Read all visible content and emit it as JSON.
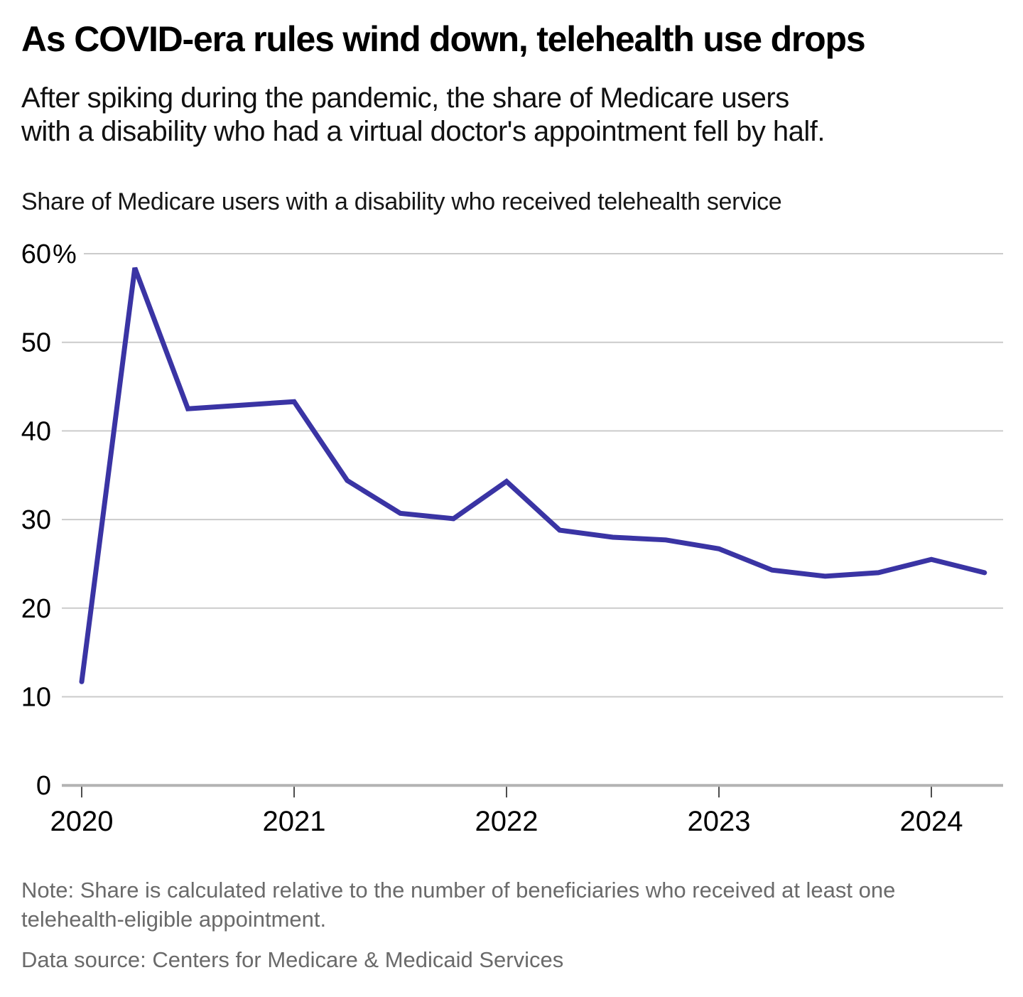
{
  "header": {
    "title": "As COVID-era rules wind down, telehealth use drops",
    "subtitle": "After spiking during the pandemic, the share of Medicare users\nwith a disability who had a virtual doctor's appointment fell by half."
  },
  "chart_data": {
    "type": "line",
    "title": "Share of Medicare users with a disability who received telehealth service",
    "x_quarters": [
      "2020 Q1",
      "2020 Q2",
      "2020 Q3",
      "2020 Q4",
      "2021 Q1",
      "2021 Q2",
      "2021 Q3",
      "2021 Q4",
      "2022 Q1",
      "2022 Q2",
      "2022 Q3",
      "2022 Q4",
      "2023 Q1",
      "2023 Q2",
      "2023 Q3",
      "2023 Q4",
      "2024 Q1",
      "2024 Q2"
    ],
    "values": [
      11.7,
      58.4,
      42.5,
      42.9,
      43.3,
      34.4,
      30.7,
      30.1,
      34.3,
      28.8,
      28.0,
      27.7,
      26.7,
      24.3,
      23.6,
      24.0,
      25.5,
      24.0
    ],
    "x_tick_labels": [
      "2020",
      "2021",
      "2022",
      "2023",
      "2024"
    ],
    "y_tick_labels": [
      "60%",
      "50",
      "40",
      "30",
      "20",
      "10",
      "0"
    ],
    "ylim": [
      0,
      60
    ],
    "grid": "horizontal",
    "legend": "none",
    "line_color": "#3a34a4",
    "gridline_color": "#cbcbcb",
    "baseline_color": "#b3b3b3",
    "tick_color": "#4d4d4d"
  },
  "footer": {
    "note": "Note: Share is calculated relative to the number of beneficiaries who received at least one\ntelehealth-eligible appointment.",
    "source": "Data source: Centers for Medicare & Medicaid Services"
  }
}
